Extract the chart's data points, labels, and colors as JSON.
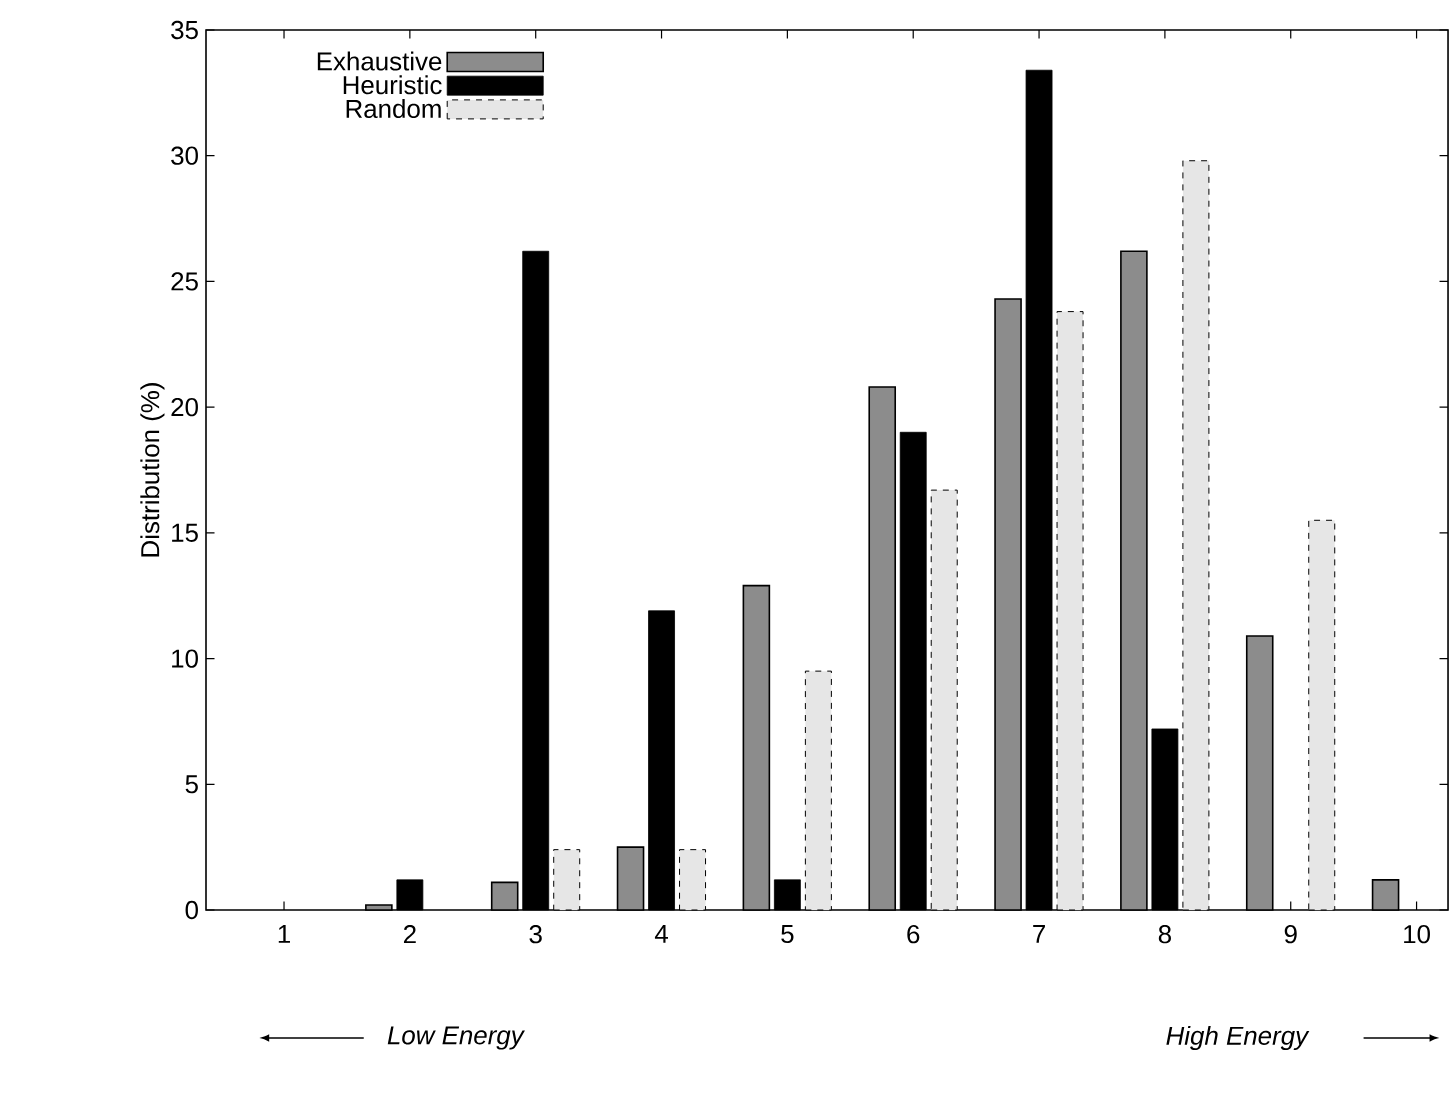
{
  "chart_data": {
    "type": "bar",
    "ylabel": "Distribution (%)",
    "categories": [
      "1",
      "2",
      "3",
      "4",
      "5",
      "6",
      "7",
      "8",
      "9",
      "10"
    ],
    "series": [
      {
        "name": "Exhaustive",
        "color": "#8c8c8c",
        "values": [
          0,
          0.2,
          1.1,
          2.5,
          12.9,
          20.8,
          24.3,
          26.2,
          10.9,
          1.2
        ]
      },
      {
        "name": "Heuristic",
        "color": "#000000",
        "values": [
          0,
          1.2,
          26.2,
          11.9,
          1.2,
          19.0,
          33.4,
          7.2,
          0,
          0
        ]
      },
      {
        "name": "Random",
        "color": "#e6e6e6",
        "values": [
          0,
          0,
          2.4,
          2.4,
          9.5,
          16.7,
          23.8,
          29.8,
          15.5,
          0
        ]
      }
    ],
    "ylim": [
      0,
      35
    ],
    "yticks": [
      0,
      5,
      10,
      15,
      20,
      25,
      30,
      35
    ],
    "grid": false,
    "legend": "top left",
    "annotations": [
      "Low Energy",
      "High Energy"
    ]
  }
}
